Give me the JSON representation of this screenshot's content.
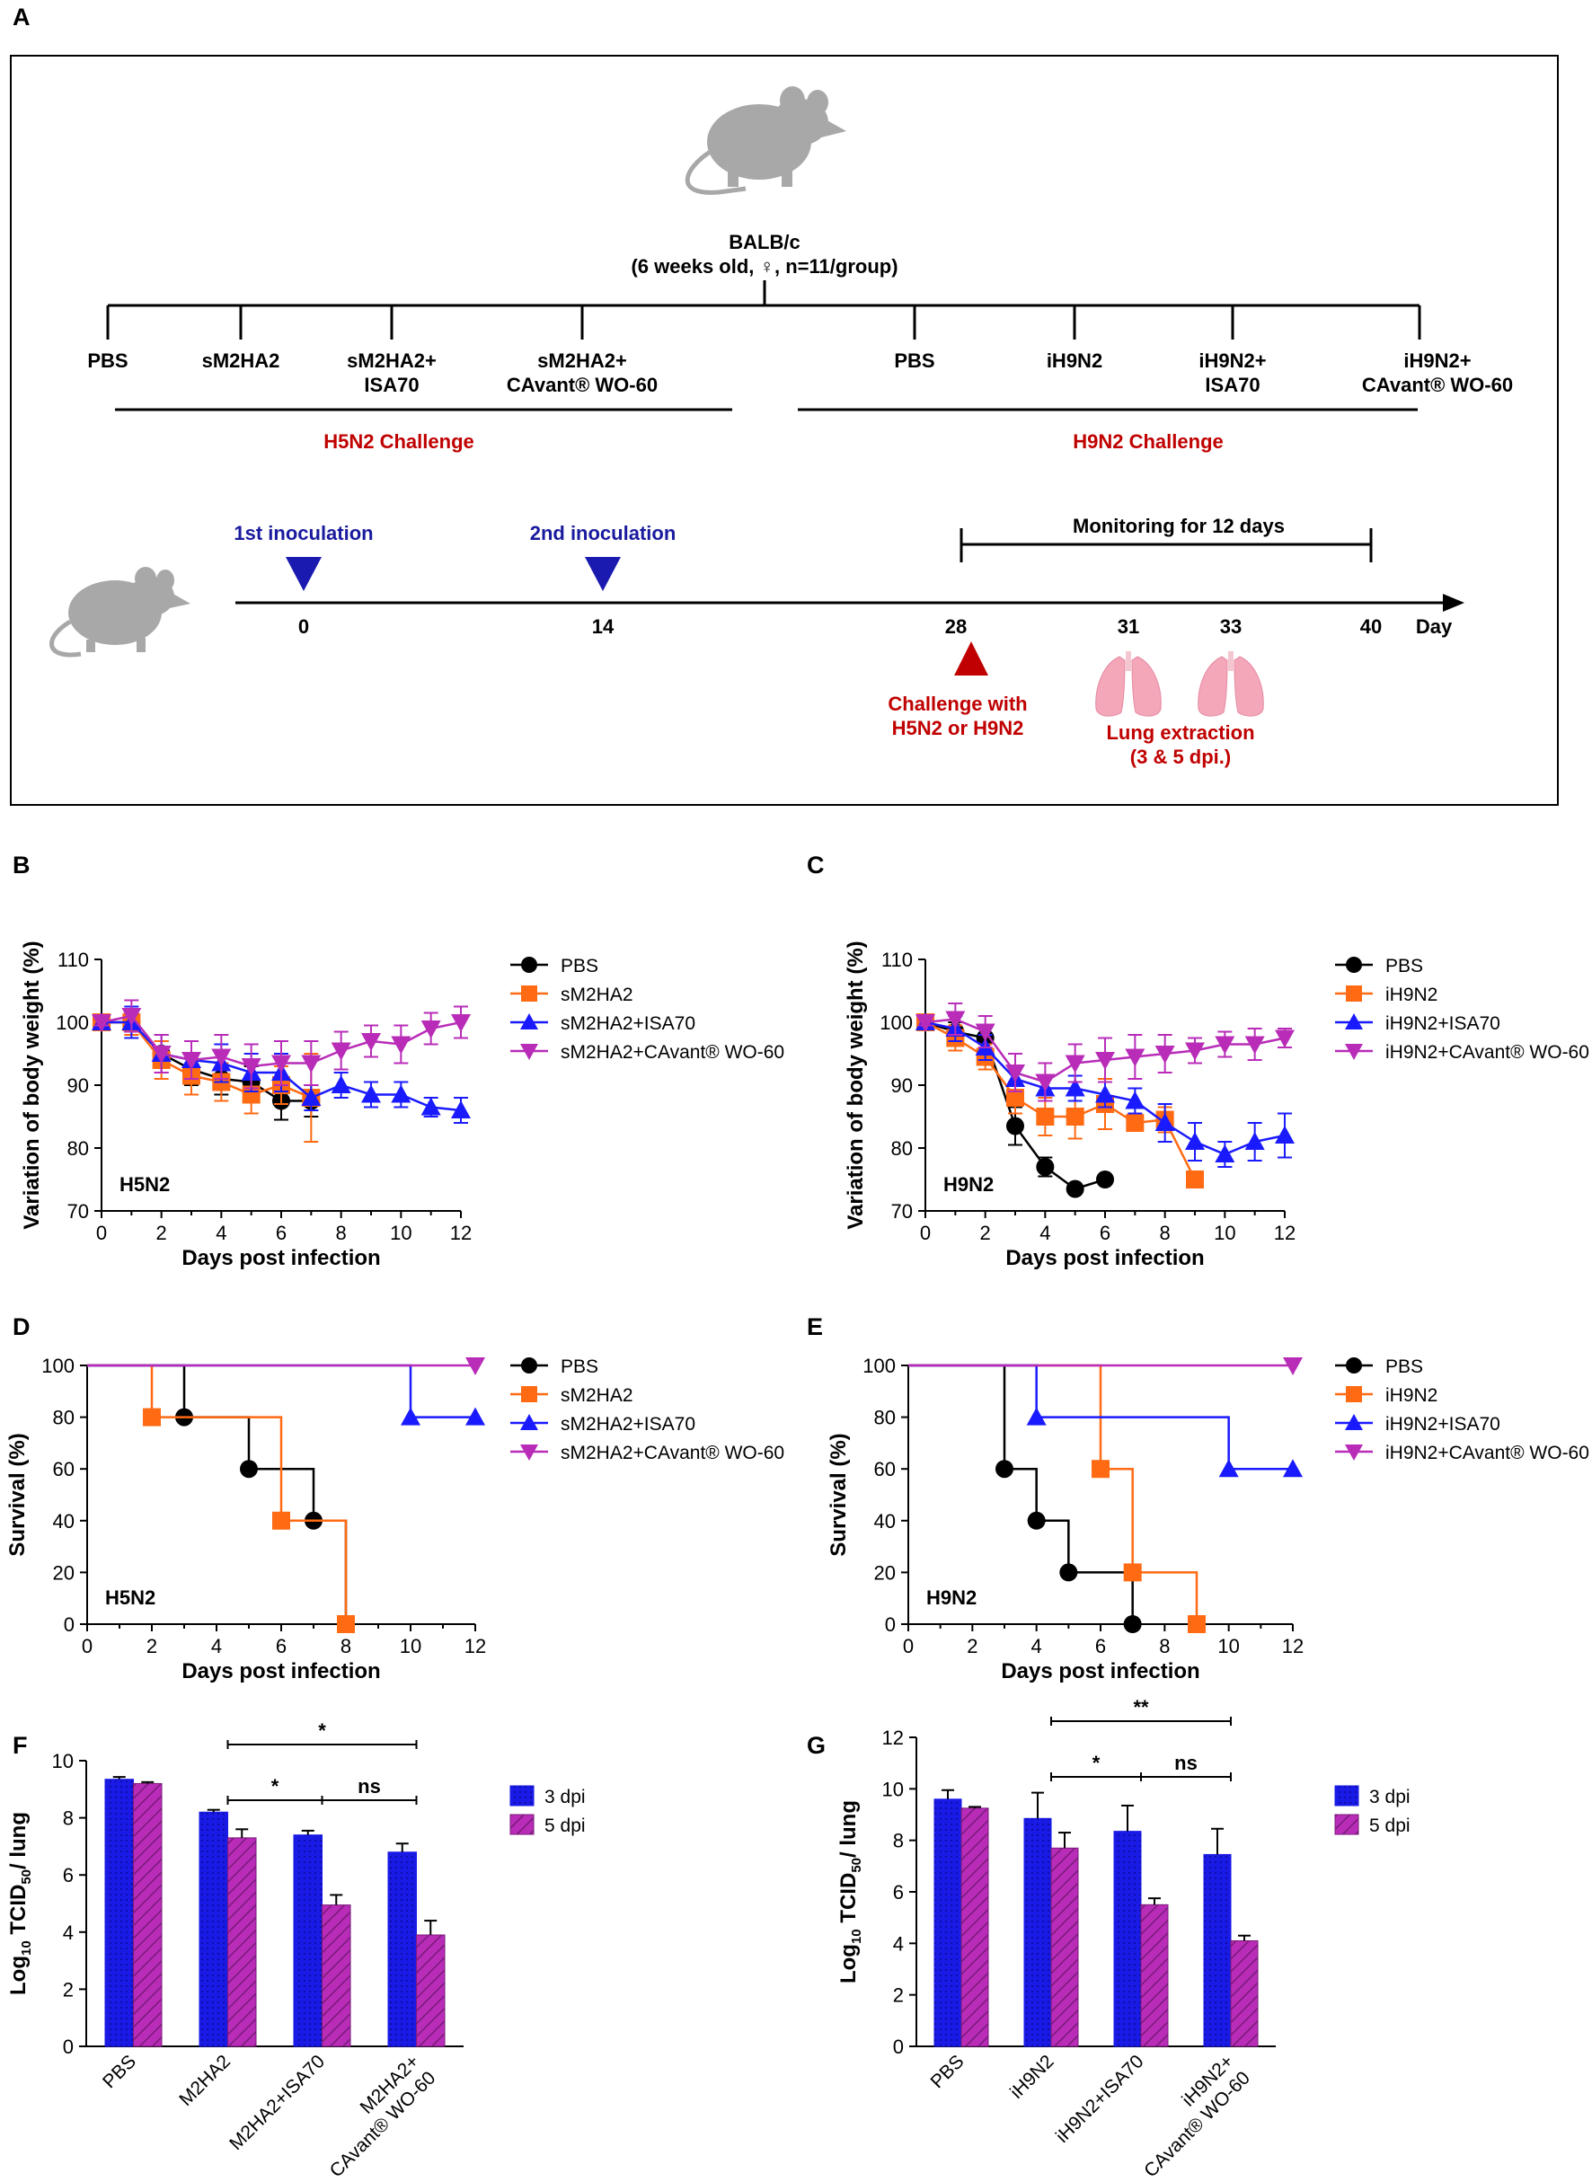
{
  "panels": {
    "a": "A",
    "b": "B",
    "c": "C",
    "d": "D",
    "e": "E",
    "f": "F",
    "g": "G"
  },
  "schema": {
    "mouse_label": "BALB/c",
    "mouse_sub": "(6 weeks old, ♀, n=11/group)",
    "groups": [
      {
        "l1": "PBS",
        "l2": ""
      },
      {
        "l1": "sM2HA2",
        "l2": ""
      },
      {
        "l1": "sM2HA2+",
        "l2": "ISA70"
      },
      {
        "l1": "sM2HA2+",
        "l2": "CAvant® WO-60"
      },
      {
        "l1": "PBS",
        "l2": ""
      },
      {
        "l1": "iH9N2",
        "l2": ""
      },
      {
        "l1": "iH9N2+",
        "l2": "ISA70"
      },
      {
        "l1": "iH9N2+",
        "l2": "CAvant® WO-60"
      }
    ],
    "h5_challenge": "H5N2 Challenge",
    "h9_challenge": "H9N2 Challenge",
    "inoc1": "1st inoculation",
    "inoc2": "2nd inoculation",
    "monitor": "Monitoring for 12 days",
    "days": [
      "0",
      "14",
      "28",
      "31",
      "33",
      "40"
    ],
    "day_unit": "Day",
    "challenge_l1": "Challenge with",
    "challenge_l2": "H5N2 or H9N2",
    "lung_l1": "Lung extraction",
    "lung_l2": "(3 & 5 dpi.)"
  },
  "colors": {
    "pbs": "#000000",
    "grp2": "#ff6a13",
    "isa": "#1a1aff",
    "cavant": "#b82cb8",
    "bar3": "#1a1ae6",
    "bar5": "#b82cb8",
    "red": "#c00000",
    "navy": "#1a1a9e"
  },
  "chart_data": [
    {
      "id": "B",
      "type": "line",
      "title": "H5N2",
      "xlabel": "Days post infection",
      "ylabel": "Variation of body weight (%)",
      "xlim": [
        0,
        12
      ],
      "ylim": [
        70,
        110
      ],
      "xticks": [
        0,
        2,
        4,
        6,
        8,
        10,
        12
      ],
      "yticks": [
        70,
        80,
        90,
        100,
        110
      ],
      "series": [
        {
          "name": "PBS",
          "marker": "circle",
          "x": [
            0,
            1,
            2,
            3,
            4,
            5,
            6,
            7
          ],
          "y": [
            100,
            100,
            95,
            92.5,
            91,
            90.5,
            87.5,
            87.5
          ],
          "err": [
            0.5,
            1.5,
            2,
            2.5,
            2.5,
            2.5,
            3,
            2.5
          ]
        },
        {
          "name": "sM2HA2",
          "marker": "square",
          "x": [
            0,
            1,
            2,
            3,
            4,
            5,
            6,
            7
          ],
          "y": [
            100,
            100,
            94,
            91.5,
            90.5,
            88.5,
            90,
            88
          ],
          "err": [
            0.5,
            2,
            3,
            3,
            3,
            3,
            3,
            7
          ]
        },
        {
          "name": "sM2HA2+ISA70",
          "marker": "triangle",
          "x": [
            0,
            1,
            2,
            3,
            4,
            5,
            6,
            7,
            8,
            9,
            10,
            11,
            12
          ],
          "y": [
            100,
            100,
            95,
            94,
            93.5,
            92,
            92,
            88,
            90,
            88.5,
            88.5,
            86.5,
            86
          ],
          "err": [
            0.5,
            2.5,
            3,
            3,
            3,
            3,
            3,
            2,
            2,
            2,
            2,
            1.5,
            2
          ]
        },
        {
          "name": "sM2HA2+CAvant® WO-60",
          "marker": "triangle-down",
          "x": [
            0,
            1,
            2,
            3,
            4,
            5,
            6,
            7,
            8,
            9,
            10,
            11,
            12
          ],
          "y": [
            100,
            101,
            95,
            94,
            94.5,
            93,
            93.5,
            93.5,
            95.5,
            97,
            96.5,
            99,
            100
          ],
          "err": [
            0.5,
            2.5,
            3,
            3,
            3.5,
            3.5,
            3.5,
            3.5,
            3,
            2.5,
            3,
            2.5,
            2.5
          ]
        }
      ]
    },
    {
      "id": "C",
      "type": "line",
      "title": "H9N2",
      "xlabel": "Days post infection",
      "ylabel": "Variation of body weight (%)",
      "xlim": [
        0,
        12
      ],
      "ylim": [
        70,
        110
      ],
      "xticks": [
        0,
        2,
        4,
        6,
        8,
        10,
        12
      ],
      "yticks": [
        70,
        80,
        90,
        100,
        110
      ],
      "series": [
        {
          "name": "PBS",
          "marker": "circle",
          "x": [
            0,
            1,
            2,
            3,
            4,
            5,
            6
          ],
          "y": [
            100,
            98.5,
            97.5,
            83.5,
            77,
            73.5,
            75
          ],
          "err": [
            0.5,
            1.5,
            2,
            3,
            1.5,
            0.5,
            0.5
          ]
        },
        {
          "name": "iH9N2",
          "marker": "square",
          "x": [
            0,
            1,
            2,
            3,
            4,
            5,
            6,
            7,
            8,
            9
          ],
          "y": [
            100,
            97.5,
            94.5,
            88,
            85,
            85,
            87,
            84,
            84.5,
            75
          ],
          "err": [
            0.5,
            2,
            2,
            2.5,
            3,
            3.5,
            4,
            1,
            2,
            0.5
          ]
        },
        {
          "name": "iH9N2+ISA70",
          "marker": "triangle",
          "x": [
            0,
            1,
            2,
            3,
            4,
            5,
            6,
            7,
            8,
            9,
            10,
            11,
            12
          ],
          "y": [
            100,
            99,
            96,
            91,
            89.5,
            89.5,
            88.5,
            87.5,
            84,
            81,
            79,
            81,
            82
          ],
          "err": [
            0.5,
            2,
            2,
            2,
            2,
            2,
            2,
            2,
            3,
            3,
            2,
            3,
            3.5
          ]
        },
        {
          "name": "iH9N2+CAvant® WO-60",
          "marker": "triangle-down",
          "x": [
            0,
            1,
            2,
            3,
            4,
            5,
            6,
            7,
            8,
            9,
            10,
            11,
            12
          ],
          "y": [
            100,
            100.5,
            98.5,
            92,
            90.5,
            93.5,
            94,
            94.5,
            95,
            95.5,
            96.5,
            96.5,
            97.5
          ],
          "err": [
            0.5,
            2.5,
            2.5,
            3,
            3,
            3,
            3.5,
            3.5,
            3,
            2,
            2,
            2.5,
            1.5
          ]
        }
      ]
    },
    {
      "id": "D",
      "type": "step",
      "title": "H5N2",
      "xlabel": "Days post infection",
      "ylabel": "Survival (%)",
      "xlim": [
        0,
        12
      ],
      "ylim": [
        0,
        100
      ],
      "xticks": [
        0,
        2,
        4,
        6,
        8,
        10,
        12
      ],
      "yticks": [
        0,
        20,
        40,
        60,
        80,
        100
      ],
      "series": [
        {
          "name": "PBS",
          "marker": "circle",
          "x": [
            0,
            3,
            5,
            7,
            8
          ],
          "y": [
            100,
            80,
            60,
            40,
            0
          ]
        },
        {
          "name": "sM2HA2",
          "marker": "square",
          "x": [
            0,
            2,
            6,
            8
          ],
          "y": [
            100,
            80,
            40,
            0
          ]
        },
        {
          "name": "sM2HA2+ISA70",
          "marker": "triangle",
          "x": [
            0,
            10,
            12
          ],
          "y": [
            100,
            80,
            80
          ]
        },
        {
          "name": "sM2HA2+CAvant® WO-60",
          "marker": "triangle-down",
          "x": [
            0,
            12
          ],
          "y": [
            100,
            100
          ]
        }
      ]
    },
    {
      "id": "E",
      "type": "step",
      "title": "H9N2",
      "xlabel": "Days post infection",
      "ylabel": "Survival (%)",
      "xlim": [
        0,
        12
      ],
      "ylim": [
        0,
        100
      ],
      "xticks": [
        0,
        2,
        4,
        6,
        8,
        10,
        12
      ],
      "yticks": [
        0,
        20,
        40,
        60,
        80,
        100
      ],
      "series": [
        {
          "name": "PBS",
          "marker": "circle",
          "x": [
            0,
            3,
            4,
            5,
            7
          ],
          "y": [
            100,
            60,
            40,
            20,
            0
          ]
        },
        {
          "name": "iH9N2",
          "marker": "square",
          "x": [
            0,
            6,
            7,
            9
          ],
          "y": [
            100,
            60,
            20,
            0
          ]
        },
        {
          "name": "iH9N2+ISA70",
          "marker": "triangle",
          "x": [
            0,
            4,
            10,
            12
          ],
          "y": [
            100,
            80,
            60,
            60
          ]
        },
        {
          "name": "iH9N2+CAvant® WO-60",
          "marker": "triangle-down",
          "x": [
            0,
            12
          ],
          "y": [
            100,
            100
          ]
        }
      ]
    },
    {
      "id": "F",
      "type": "bar",
      "ylabel": "Log10 TCID50/ lung",
      "ylim": [
        0,
        10
      ],
      "yticks": [
        0,
        2,
        4,
        6,
        8,
        10
      ],
      "categories": [
        {
          "l1": "PBS",
          "l2": ""
        },
        {
          "l1": "M2HA2",
          "l2": ""
        },
        {
          "l1": "M2HA2+ISA70",
          "l2": ""
        },
        {
          "l1": "M2HA2+",
          "l2": "CAvant® WO-60"
        }
      ],
      "series": [
        {
          "name": "3 dpi",
          "values": [
            9.35,
            8.2,
            7.4,
            6.8
          ],
          "err": [
            0.08,
            0.08,
            0.15,
            0.3
          ]
        },
        {
          "name": "5 dpi",
          "values": [
            9.2,
            7.3,
            4.95,
            3.9
          ],
          "err": [
            0.05,
            0.3,
            0.35,
            0.5
          ]
        }
      ],
      "sig": [
        {
          "from": 1,
          "to": 3,
          "label": "*"
        },
        {
          "from": 1,
          "to": 2,
          "label": "*"
        },
        {
          "from": 2,
          "to": 3,
          "label": "ns"
        }
      ]
    },
    {
      "id": "G",
      "type": "bar",
      "ylabel": "Log10 TCID50/ lung",
      "ylim": [
        0,
        12
      ],
      "yticks": [
        0,
        2,
        4,
        6,
        8,
        10,
        12
      ],
      "categories": [
        {
          "l1": "PBS",
          "l2": ""
        },
        {
          "l1": "iH9N2",
          "l2": ""
        },
        {
          "l1": "iH9N2+ISA70",
          "l2": ""
        },
        {
          "l1": "iH9N2+",
          "l2": "CAvant® WO-60"
        }
      ],
      "series": [
        {
          "name": "3 dpi",
          "values": [
            9.6,
            8.85,
            8.35,
            7.45
          ],
          "err": [
            0.35,
            1,
            1,
            1
          ]
        },
        {
          "name": "5 dpi",
          "values": [
            9.25,
            7.7,
            5.5,
            4.1
          ],
          "err": [
            0.05,
            0.6,
            0.25,
            0.2
          ]
        }
      ],
      "sig": [
        {
          "from": 1,
          "to": 3,
          "label": "**"
        },
        {
          "from": 1,
          "to": 2,
          "label": "*"
        },
        {
          "from": 2,
          "to": 3,
          "label": "ns"
        }
      ]
    }
  ]
}
